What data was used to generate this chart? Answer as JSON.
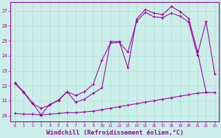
{
  "bg_color": "#cceee8",
  "line_color": "#990099",
  "grid_color": "#aadddd",
  "xlabel": "Windchill (Refroidissement éolien,°C)",
  "xlabel_fontsize": 6.5,
  "ylabel_ticks": [
    20,
    21,
    22,
    23,
    24,
    25,
    26,
    27
  ],
  "xticks": [
    0,
    1,
    2,
    3,
    4,
    5,
    6,
    7,
    8,
    9,
    10,
    11,
    12,
    13,
    14,
    15,
    16,
    17,
    18,
    19,
    20,
    21,
    22,
    23
  ],
  "xlim": [
    -0.5,
    23.5
  ],
  "ylim": [
    19.6,
    27.6
  ],
  "series1_x": [
    0,
    1,
    2,
    3,
    4,
    5,
    6,
    7,
    8,
    9,
    10,
    11,
    12,
    13,
    14,
    15,
    16,
    17,
    18,
    19,
    20,
    21,
    22
  ],
  "series1_y": [
    22.2,
    21.6,
    20.85,
    20.05,
    20.75,
    21.0,
    21.6,
    20.9,
    21.1,
    21.5,
    21.85,
    24.95,
    24.95,
    23.2,
    26.45,
    27.1,
    26.85,
    26.75,
    27.3,
    26.95,
    26.5,
    24.3,
    21.6
  ],
  "series2_x": [
    0,
    1,
    2,
    3,
    4,
    5,
    6,
    7,
    8,
    9,
    10,
    11,
    12,
    13,
    14,
    15,
    16,
    17,
    18,
    19,
    20,
    21,
    22,
    23
  ],
  "series2_y": [
    22.15,
    21.55,
    20.8,
    20.5,
    20.7,
    21.05,
    21.6,
    21.35,
    21.6,
    22.1,
    23.7,
    24.85,
    24.9,
    24.25,
    26.3,
    26.9,
    26.6,
    26.55,
    26.85,
    26.65,
    26.25,
    24.05,
    26.3,
    22.8
  ],
  "series3_x": [
    0,
    1,
    2,
    3,
    4,
    5,
    6,
    7,
    8,
    9,
    10,
    11,
    12,
    13,
    14,
    15,
    16,
    17,
    18,
    19,
    20,
    21,
    22,
    23
  ],
  "series3_y": [
    20.15,
    20.1,
    20.1,
    20.05,
    20.1,
    20.15,
    20.2,
    20.2,
    20.25,
    20.3,
    20.4,
    20.5,
    20.6,
    20.7,
    20.8,
    20.9,
    21.0,
    21.1,
    21.2,
    21.3,
    21.4,
    21.5,
    21.55,
    21.55
  ]
}
